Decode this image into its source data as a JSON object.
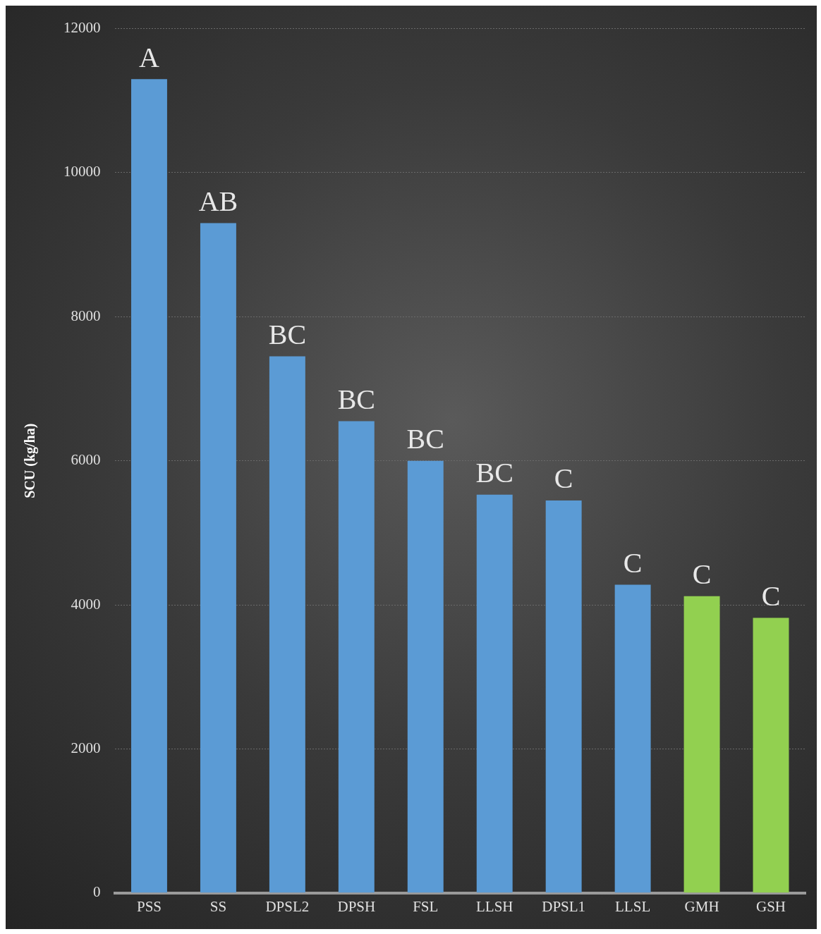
{
  "chart_data": {
    "type": "bar",
    "ylabel": "SCU (kg/ha)",
    "categories": [
      "PSS",
      "SS",
      "DPSL2",
      "DPSH",
      "FSL",
      "LLSH",
      "DPSL1",
      "LLSL",
      "GMH",
      "GSH"
    ],
    "values": [
      11300,
      9300,
      7450,
      6550,
      6000,
      5530,
      5450,
      4280,
      4120,
      3820
    ],
    "colors": [
      "#5b9bd5",
      "#5b9bd5",
      "#5b9bd5",
      "#5b9bd5",
      "#5b9bd5",
      "#5b9bd5",
      "#5b9bd5",
      "#5b9bd5",
      "#92d050",
      "#92d050"
    ],
    "ylim": [
      0,
      12000
    ],
    "yticks": [
      0,
      2000,
      4000,
      6000,
      8000,
      10000,
      12000
    ],
    "grid": "y",
    "legend": false,
    "annotations": [
      {
        "text": "A",
        "x": "PSS",
        "y": 11300
      },
      {
        "text": "AB",
        "x": "SS",
        "y": 9300
      },
      {
        "text": "BC",
        "x": "DPSL2",
        "y": 7450
      },
      {
        "text": "BC",
        "x": "DPSH",
        "y": 6550
      },
      {
        "text": "BC",
        "x": "FSL",
        "y": 6000
      },
      {
        "text": "BC",
        "x": "LLSH",
        "y": 5530
      },
      {
        "text": "C",
        "x": "DPSL1",
        "y": 5450
      },
      {
        "text": "C",
        "x": "LLSL",
        "y": 4280
      },
      {
        "text": "C",
        "x": "GMH",
        "y": 4120
      },
      {
        "text": "C",
        "x": "GSH",
        "y": 3820
      }
    ]
  }
}
